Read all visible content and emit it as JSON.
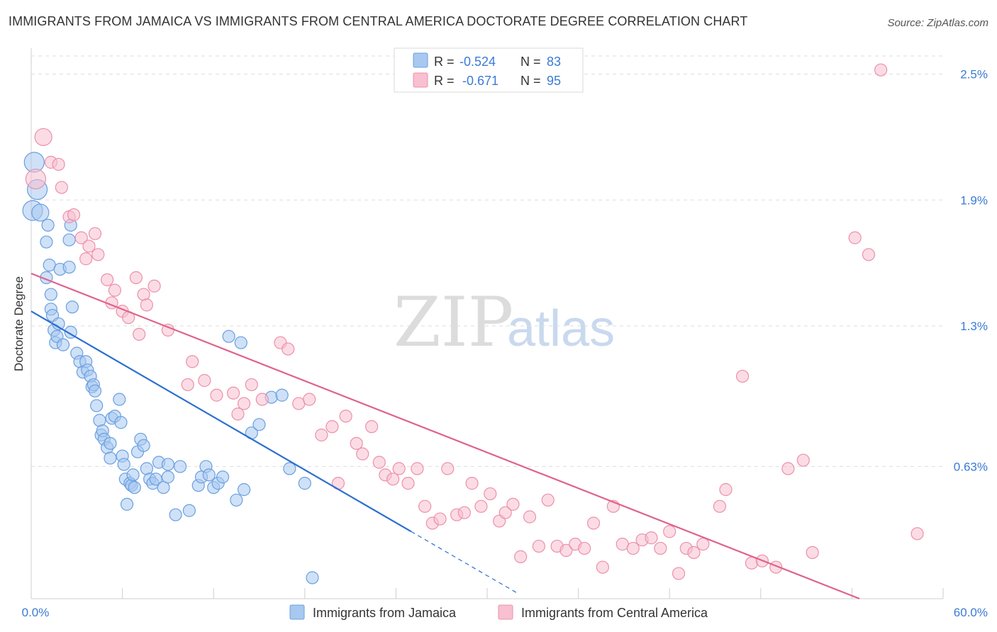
{
  "header": {
    "title": "IMMIGRANTS FROM JAMAICA VS IMMIGRANTS FROM CENTRAL AMERICA DOCTORATE DEGREE CORRELATION CHART",
    "source": "Source: ZipAtlas.com"
  },
  "watermark": {
    "zip": "ZIP",
    "atlas": "atlas"
  },
  "stats": {
    "r_label": "R =",
    "n_label": "N =",
    "jamaica": {
      "r": "-0.524",
      "n": "83"
    },
    "central_america": {
      "r": "-0.671",
      "n": "95"
    }
  },
  "colors": {
    "jamaica_fill": "#a8c8f0",
    "jamaica_stroke": "#6a9fe0",
    "jamaica_line": "#2b6fd0",
    "central_fill": "#f8c0d0",
    "central_stroke": "#ec90aa",
    "central_line": "#e0628c",
    "tick_text": "#3a7bd5"
  },
  "chart_data": {
    "type": "scatter",
    "title": "IMMIGRANTS FROM JAMAICA VS IMMIGRANTS FROM CENTRAL AMERICA DOCTORATE DEGREE CORRELATION CHART",
    "xlabel": "",
    "ylabel": "Doctorate Degree",
    "xlim": [
      0,
      60
    ],
    "ylim": [
      0,
      2.6
    ],
    "x_tick_labels": [
      "0.0%",
      "60.0%"
    ],
    "y_ticks": [
      {
        "value": 0.63,
        "label": "0.63%"
      },
      {
        "value": 1.3,
        "label": "1.3%"
      },
      {
        "value": 1.9,
        "label": "1.9%"
      },
      {
        "value": 2.5,
        "label": "2.5%"
      }
    ],
    "legend": [
      "Immigrants from Jamaica",
      "Immigrants from Central America"
    ],
    "series": [
      {
        "name": "Immigrants from Jamaica",
        "points": [
          [
            0.1,
            1.85
          ],
          [
            0.2,
            2.08
          ],
          [
            0.4,
            1.95
          ],
          [
            0.6,
            1.84
          ],
          [
            1.0,
            1.7
          ],
          [
            1.0,
            1.53
          ],
          [
            1.1,
            1.78
          ],
          [
            1.2,
            1.59
          ],
          [
            1.3,
            1.45
          ],
          [
            1.3,
            1.38
          ],
          [
            1.4,
            1.35
          ],
          [
            1.5,
            1.28
          ],
          [
            1.6,
            1.22
          ],
          [
            1.7,
            1.25
          ],
          [
            1.8,
            1.31
          ],
          [
            1.9,
            1.57
          ],
          [
            2.1,
            1.21
          ],
          [
            2.5,
            1.71
          ],
          [
            2.5,
            1.58
          ],
          [
            2.6,
            1.78
          ],
          [
            2.7,
            1.39
          ],
          [
            2.6,
            1.27
          ],
          [
            3.0,
            1.17
          ],
          [
            3.2,
            1.13
          ],
          [
            3.4,
            1.08
          ],
          [
            3.6,
            1.13
          ],
          [
            3.7,
            1.09
          ],
          [
            3.9,
            1.06
          ],
          [
            4.0,
            1.01
          ],
          [
            4.1,
            1.02
          ],
          [
            4.2,
            0.99
          ],
          [
            4.3,
            0.92
          ],
          [
            4.5,
            0.85
          ],
          [
            4.6,
            0.78
          ],
          [
            4.7,
            0.8
          ],
          [
            4.8,
            0.76
          ],
          [
            5.0,
            0.72
          ],
          [
            5.2,
            0.74
          ],
          [
            5.2,
            0.67
          ],
          [
            5.3,
            0.86
          ],
          [
            5.5,
            0.87
          ],
          [
            5.8,
            0.95
          ],
          [
            5.9,
            0.84
          ],
          [
            6.0,
            0.68
          ],
          [
            6.1,
            0.64
          ],
          [
            6.2,
            0.57
          ],
          [
            6.3,
            0.45
          ],
          [
            6.5,
            0.55
          ],
          [
            6.6,
            0.54
          ],
          [
            6.7,
            0.59
          ],
          [
            6.8,
            0.53
          ],
          [
            7.0,
            0.7
          ],
          [
            7.2,
            0.76
          ],
          [
            7.4,
            0.73
          ],
          [
            7.6,
            0.62
          ],
          [
            7.8,
            0.57
          ],
          [
            8.0,
            0.55
          ],
          [
            8.2,
            0.57
          ],
          [
            8.4,
            0.65
          ],
          [
            8.7,
            0.53
          ],
          [
            9.0,
            0.58
          ],
          [
            9.0,
            0.64
          ],
          [
            9.5,
            0.4
          ],
          [
            9.8,
            0.63
          ],
          [
            10.4,
            0.42
          ],
          [
            11.0,
            0.54
          ],
          [
            11.2,
            0.58
          ],
          [
            11.5,
            0.63
          ],
          [
            11.7,
            0.59
          ],
          [
            12.0,
            0.53
          ],
          [
            12.3,
            0.55
          ],
          [
            12.6,
            0.58
          ],
          [
            13.0,
            1.25
          ],
          [
            13.5,
            0.47
          ],
          [
            13.8,
            1.22
          ],
          [
            14.0,
            0.52
          ],
          [
            14.5,
            0.79
          ],
          [
            15.0,
            0.83
          ],
          [
            15.8,
            0.96
          ],
          [
            16.5,
            0.97
          ],
          [
            17.0,
            0.62
          ],
          [
            18.0,
            0.55
          ],
          [
            18.5,
            0.1
          ]
        ]
      },
      {
        "name": "Immigrants from Central America",
        "points": [
          [
            0.3,
            2.0
          ],
          [
            0.8,
            2.2
          ],
          [
            1.3,
            2.08
          ],
          [
            1.8,
            2.07
          ],
          [
            2.0,
            1.96
          ],
          [
            2.5,
            1.82
          ],
          [
            2.8,
            1.83
          ],
          [
            3.3,
            1.72
          ],
          [
            3.6,
            1.62
          ],
          [
            3.8,
            1.68
          ],
          [
            4.2,
            1.74
          ],
          [
            4.4,
            1.64
          ],
          [
            5.0,
            1.52
          ],
          [
            5.3,
            1.41
          ],
          [
            5.5,
            1.47
          ],
          [
            6.0,
            1.37
          ],
          [
            6.4,
            1.34
          ],
          [
            6.9,
            1.53
          ],
          [
            7.1,
            1.26
          ],
          [
            7.4,
            1.45
          ],
          [
            7.6,
            1.4
          ],
          [
            8.1,
            1.49
          ],
          [
            9.0,
            1.28
          ],
          [
            10.3,
            1.02
          ],
          [
            10.6,
            1.13
          ],
          [
            11.4,
            1.04
          ],
          [
            12.2,
            0.97
          ],
          [
            13.3,
            0.98
          ],
          [
            13.6,
            0.88
          ],
          [
            14.0,
            0.93
          ],
          [
            14.5,
            1.02
          ],
          [
            15.2,
            0.95
          ],
          [
            16.4,
            1.22
          ],
          [
            16.9,
            1.19
          ],
          [
            17.6,
            0.93
          ],
          [
            18.3,
            0.95
          ],
          [
            19.1,
            0.78
          ],
          [
            19.8,
            0.82
          ],
          [
            20.2,
            0.55
          ],
          [
            20.7,
            0.87
          ],
          [
            21.4,
            0.74
          ],
          [
            21.8,
            0.69
          ],
          [
            22.4,
            0.82
          ],
          [
            22.9,
            0.65
          ],
          [
            23.3,
            0.59
          ],
          [
            23.8,
            0.57
          ],
          [
            24.2,
            0.62
          ],
          [
            24.8,
            0.55
          ],
          [
            25.4,
            0.62
          ],
          [
            25.9,
            0.44
          ],
          [
            26.4,
            0.36
          ],
          [
            26.9,
            0.38
          ],
          [
            27.4,
            0.62
          ],
          [
            28.0,
            0.4
          ],
          [
            28.5,
            0.41
          ],
          [
            29.0,
            0.55
          ],
          [
            29.6,
            0.44
          ],
          [
            30.2,
            0.5
          ],
          [
            30.8,
            0.37
          ],
          [
            31.2,
            0.41
          ],
          [
            31.7,
            0.45
          ],
          [
            32.2,
            0.2
          ],
          [
            32.8,
            0.39
          ],
          [
            33.4,
            0.25
          ],
          [
            34.0,
            0.47
          ],
          [
            34.6,
            0.25
          ],
          [
            35.2,
            0.23
          ],
          [
            35.8,
            0.26
          ],
          [
            36.4,
            0.24
          ],
          [
            37.0,
            0.36
          ],
          [
            37.6,
            0.15
          ],
          [
            38.3,
            0.44
          ],
          [
            38.9,
            0.26
          ],
          [
            39.6,
            0.24
          ],
          [
            40.2,
            0.28
          ],
          [
            40.8,
            0.29
          ],
          [
            41.4,
            0.24
          ],
          [
            42.0,
            0.32
          ],
          [
            42.6,
            0.12
          ],
          [
            43.1,
            0.24
          ],
          [
            43.6,
            0.22
          ],
          [
            44.2,
            0.26
          ],
          [
            45.3,
            0.44
          ],
          [
            45.7,
            0.52
          ],
          [
            46.8,
            1.06
          ],
          [
            47.4,
            0.17
          ],
          [
            48.1,
            0.18
          ],
          [
            49.0,
            0.15
          ],
          [
            49.8,
            0.62
          ],
          [
            50.8,
            0.66
          ],
          [
            51.4,
            0.22
          ],
          [
            54.2,
            1.72
          ],
          [
            55.1,
            1.64
          ],
          [
            55.9,
            2.52
          ],
          [
            58.3,
            0.31
          ]
        ]
      }
    ],
    "trendlines": [
      {
        "series": "Immigrants from Jamaica",
        "x0": 0,
        "y0": 1.37,
        "x1": 25,
        "y1": 0.32,
        "dashed_to_x": 32
      },
      {
        "series": "Immigrants from Central America",
        "x0": 0,
        "y0": 1.55,
        "x1": 54.5,
        "y1": 0.0
      }
    ]
  },
  "legend": {
    "jamaica": "Immigrants from Jamaica",
    "central_america": "Immigrants from Central America"
  }
}
